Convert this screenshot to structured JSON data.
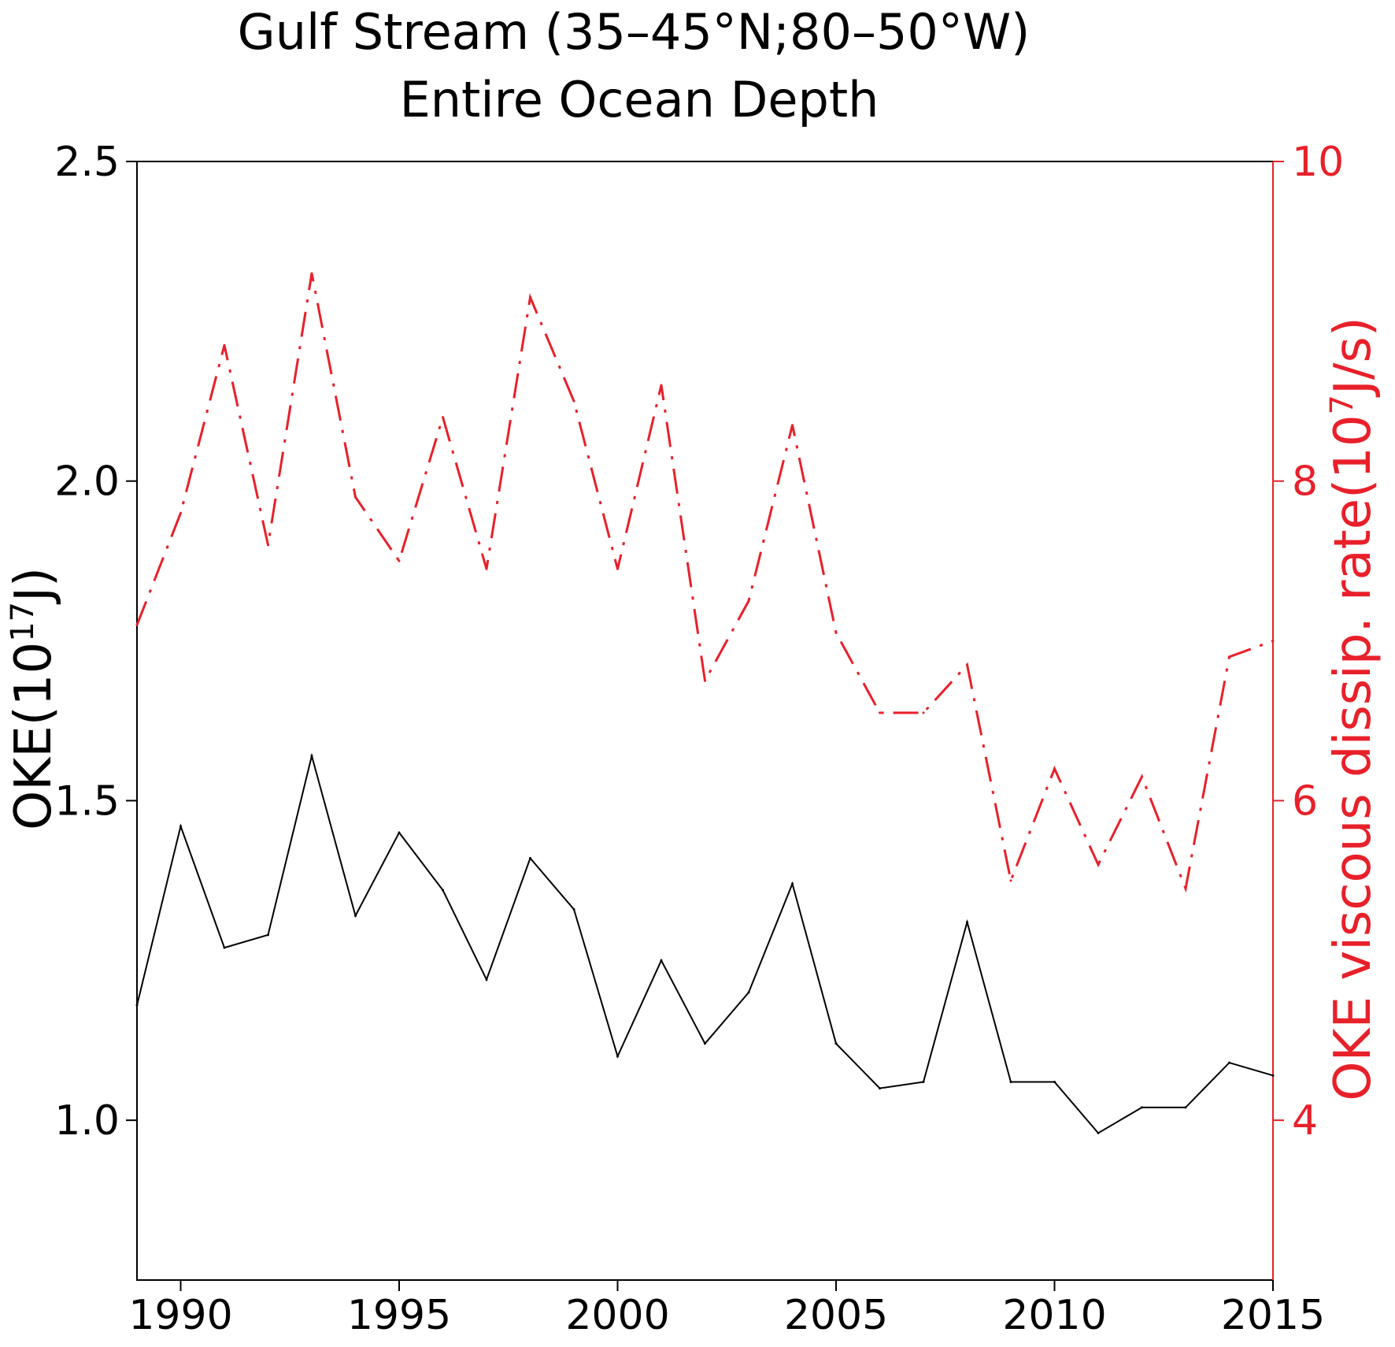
{
  "chart_data": {
    "type": "line",
    "title": "Gulf Stream (35–45°N;80–50°W)",
    "subtitle": "Entire Ocean Depth",
    "x": [
      1989,
      1990,
      1991,
      1992,
      1993,
      1994,
      1995,
      1996,
      1997,
      1998,
      1999,
      2000,
      2001,
      2002,
      2003,
      2004,
      2005,
      2006,
      2007,
      2008,
      2009,
      2010,
      2011,
      2012,
      2013,
      2014,
      2015
    ],
    "xlim": [
      1989,
      2015
    ],
    "xticks": [
      1990,
      1995,
      2000,
      2005,
      2010,
      2015
    ],
    "xtick_labels": [
      "1990",
      "1995",
      "2000",
      "2005",
      "2010",
      "2015"
    ],
    "y_left": {
      "label": "OKE(10¹⁷J)",
      "label_base": "OKE(10",
      "label_exp": "17",
      "label_unit": "J)",
      "lim": [
        0.75,
        2.5
      ],
      "ticks": [
        1.0,
        1.5,
        2.0,
        2.5
      ],
      "tick_labels": [
        "1.0",
        "1.5",
        "2.0",
        "2.5"
      ]
    },
    "y_right": {
      "label": "OKE viscous dissip. rate(10⁷J/s)",
      "label_base": "OKE viscous dissip. rate(10",
      "label_exp": "7",
      "label_unit": "J/s)",
      "lim": [
        3,
        10
      ],
      "ticks": [
        4,
        6,
        8,
        10
      ],
      "tick_labels": [
        "4",
        "6",
        "8",
        "10"
      ],
      "color": "#e8202a"
    },
    "series": [
      {
        "axis": "left",
        "style": "solid",
        "color": "#000000",
        "values": [
          1.18,
          1.46,
          1.27,
          1.29,
          1.57,
          1.32,
          1.45,
          1.36,
          1.22,
          1.41,
          1.33,
          1.1,
          1.25,
          1.12,
          1.2,
          1.37,
          1.12,
          1.05,
          1.06,
          1.31,
          1.06,
          1.06,
          0.98,
          1.02,
          1.02,
          1.09,
          1.07
        ]
      },
      {
        "axis": "right",
        "style": "dash-dot",
        "color": "#e8202a",
        "values": [
          7.1,
          7.8,
          8.85,
          7.6,
          9.3,
          7.9,
          7.5,
          8.4,
          7.45,
          9.15,
          8.5,
          7.45,
          8.6,
          6.75,
          7.25,
          8.35,
          7.05,
          6.55,
          6.55,
          6.85,
          5.5,
          6.2,
          5.6,
          6.15,
          5.45,
          6.9,
          7.0
        ]
      }
    ]
  }
}
